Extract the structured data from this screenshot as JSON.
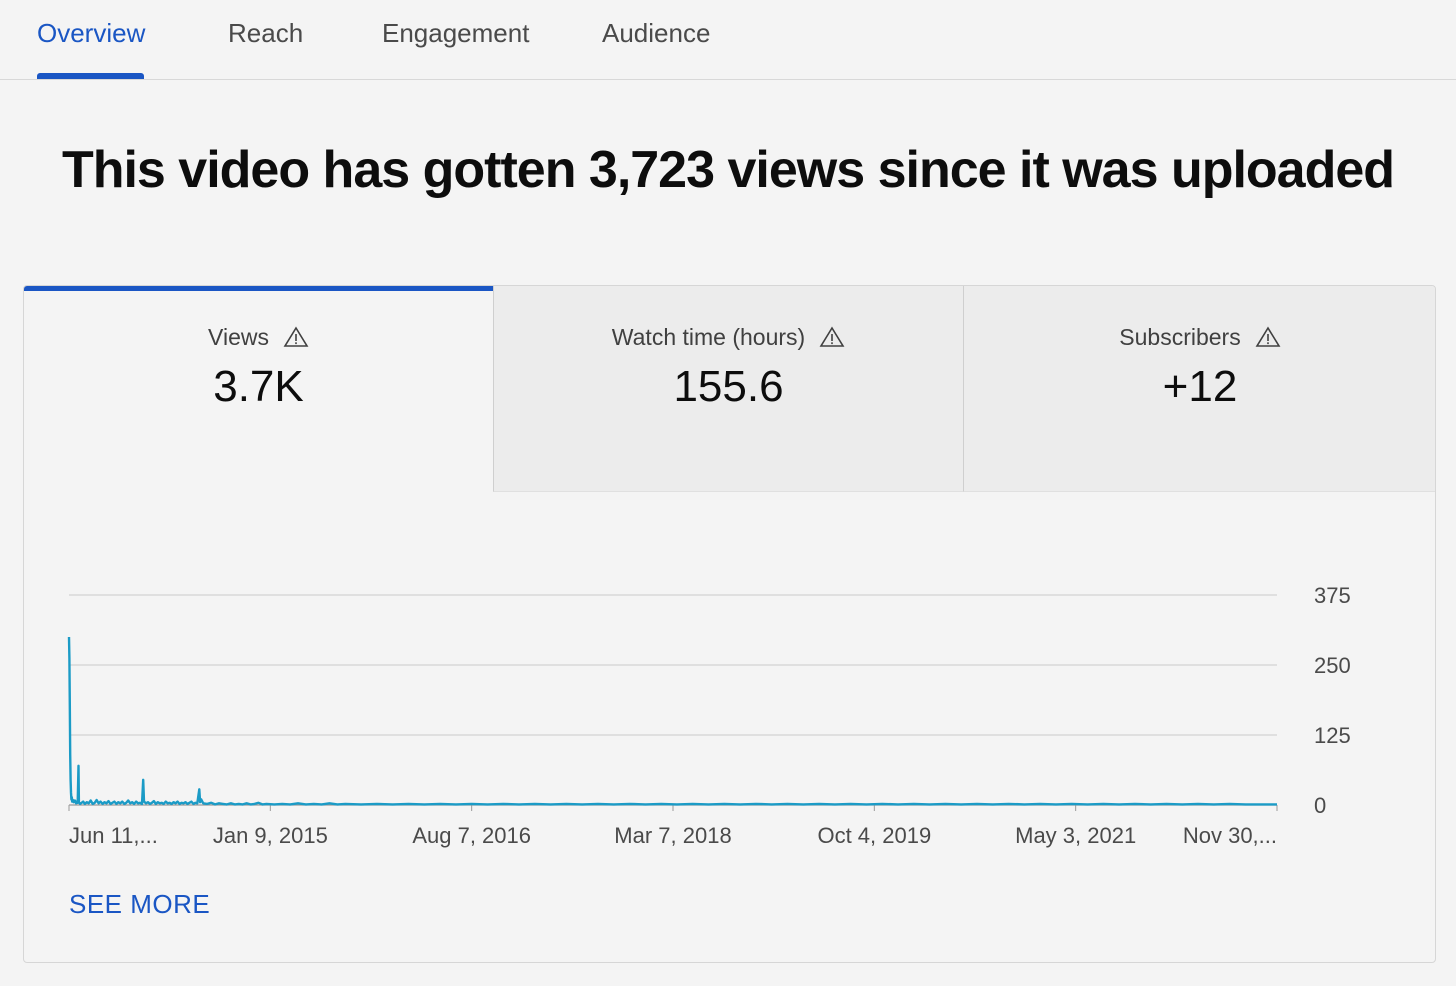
{
  "tabs": [
    {
      "label": "Overview",
      "active": true
    },
    {
      "label": "Reach",
      "active": false
    },
    {
      "label": "Engagement",
      "active": false
    },
    {
      "label": "Audience",
      "active": false
    }
  ],
  "headline": "This video has gotten 3,723 views since it was uploaded",
  "metrics": [
    {
      "label": "Views",
      "value": "3.7K",
      "icon": "warning-icon",
      "selected": true
    },
    {
      "label": "Watch time (hours)",
      "value": "155.6",
      "icon": "warning-icon",
      "selected": false
    },
    {
      "label": "Subscribers",
      "value": "+12",
      "icon": "warning-icon",
      "selected": false
    }
  ],
  "see_more_label": "SEE MORE",
  "colors": {
    "accent": "#1a56c4",
    "series": "#1b9bc6"
  },
  "chart_data": {
    "type": "line",
    "series": [
      {
        "values": [
          [
            0,
            300
          ],
          [
            1,
            262
          ],
          [
            2,
            180
          ],
          [
            3,
            90
          ],
          [
            4,
            45
          ],
          [
            5,
            22
          ],
          [
            6,
            10
          ],
          [
            7,
            14
          ],
          [
            8,
            6
          ],
          [
            10,
            9
          ],
          [
            12,
            5
          ],
          [
            15,
            8
          ],
          [
            18,
            3
          ],
          [
            20,
            6
          ],
          [
            22,
            4
          ],
          [
            24,
            70
          ],
          [
            25,
            5
          ],
          [
            28,
            2
          ],
          [
            32,
            4
          ],
          [
            36,
            6
          ],
          [
            40,
            2
          ],
          [
            45,
            5
          ],
          [
            50,
            3
          ],
          [
            55,
            8
          ],
          [
            60,
            2
          ],
          [
            65,
            4
          ],
          [
            70,
            9
          ],
          [
            75,
            3
          ],
          [
            80,
            6
          ],
          [
            85,
            2
          ],
          [
            90,
            5
          ],
          [
            95,
            3
          ],
          [
            100,
            7
          ],
          [
            105,
            2
          ],
          [
            110,
            4
          ],
          [
            115,
            6
          ],
          [
            120,
            2
          ],
          [
            125,
            5
          ],
          [
            130,
            3
          ],
          [
            135,
            6
          ],
          [
            140,
            2
          ],
          [
            145,
            4
          ],
          [
            150,
            8
          ],
          [
            155,
            3
          ],
          [
            160,
            5
          ],
          [
            165,
            2
          ],
          [
            170,
            6
          ],
          [
            175,
            3
          ],
          [
            180,
            4
          ],
          [
            185,
            2
          ],
          [
            188,
            45
          ],
          [
            190,
            6
          ],
          [
            195,
            3
          ],
          [
            200,
            5
          ],
          [
            205,
            2
          ],
          [
            210,
            4
          ],
          [
            215,
            7
          ],
          [
            220,
            2
          ],
          [
            225,
            5
          ],
          [
            230,
            3
          ],
          [
            235,
            4
          ],
          [
            240,
            2
          ],
          [
            245,
            6
          ],
          [
            250,
            3
          ],
          [
            255,
            4
          ],
          [
            260,
            2
          ],
          [
            265,
            5
          ],
          [
            270,
            3
          ],
          [
            275,
            6
          ],
          [
            280,
            2
          ],
          [
            285,
            4
          ],
          [
            290,
            3
          ],
          [
            295,
            5
          ],
          [
            300,
            2
          ],
          [
            305,
            4
          ],
          [
            310,
            6
          ],
          [
            315,
            2
          ],
          [
            320,
            4
          ],
          [
            325,
            3
          ],
          [
            330,
            28
          ],
          [
            332,
            5
          ],
          [
            335,
            10
          ],
          [
            340,
            3
          ],
          [
            350,
            2
          ],
          [
            360,
            4
          ],
          [
            370,
            1
          ],
          [
            380,
            3
          ],
          [
            390,
            2
          ],
          [
            400,
            1
          ],
          [
            410,
            3
          ],
          [
            420,
            1
          ],
          [
            430,
            2
          ],
          [
            440,
            1
          ],
          [
            450,
            3
          ],
          [
            460,
            1
          ],
          [
            470,
            2
          ],
          [
            480,
            4
          ],
          [
            490,
            1
          ],
          [
            500,
            2
          ],
          [
            520,
            1
          ],
          [
            540,
            2
          ],
          [
            560,
            1
          ],
          [
            580,
            3
          ],
          [
            600,
            1
          ],
          [
            620,
            2
          ],
          [
            640,
            1
          ],
          [
            660,
            3
          ],
          [
            680,
            1
          ],
          [
            700,
            2
          ],
          [
            740,
            1
          ],
          [
            780,
            2
          ],
          [
            820,
            1
          ],
          [
            860,
            2
          ],
          [
            900,
            1
          ],
          [
            940,
            2
          ],
          [
            980,
            1
          ],
          [
            1020,
            2
          ],
          [
            1060,
            1
          ],
          [
            1100,
            2
          ],
          [
            1140,
            1
          ],
          [
            1180,
            2
          ],
          [
            1220,
            1
          ],
          [
            1260,
            2
          ],
          [
            1300,
            1
          ],
          [
            1340,
            2
          ],
          [
            1380,
            1
          ],
          [
            1420,
            2
          ],
          [
            1460,
            1
          ],
          [
            1500,
            2
          ],
          [
            1540,
            1
          ],
          [
            1580,
            2
          ],
          [
            1620,
            1
          ],
          [
            1660,
            2
          ],
          [
            1700,
            1
          ],
          [
            1740,
            2
          ],
          [
            1780,
            1
          ],
          [
            1820,
            2
          ],
          [
            1860,
            1
          ],
          [
            1900,
            2
          ],
          [
            1940,
            1
          ],
          [
            1980,
            2
          ],
          [
            2020,
            1
          ],
          [
            2060,
            2
          ],
          [
            2100,
            1
          ],
          [
            2140,
            2
          ],
          [
            2180,
            1
          ],
          [
            2220,
            2
          ],
          [
            2260,
            1
          ],
          [
            2300,
            2
          ],
          [
            2340,
            1
          ],
          [
            2380,
            2
          ],
          [
            2420,
            1
          ],
          [
            2460,
            2
          ],
          [
            2500,
            1
          ],
          [
            2540,
            2
          ],
          [
            2580,
            1
          ],
          [
            2620,
            2
          ],
          [
            2660,
            1
          ],
          [
            2700,
            2
          ],
          [
            2740,
            1
          ],
          [
            2780,
            2
          ],
          [
            2820,
            1
          ],
          [
            2860,
            2
          ],
          [
            2900,
            1
          ],
          [
            2940,
            2
          ],
          [
            2980,
            1
          ],
          [
            3020,
            1
          ],
          [
            3060,
            1
          ]
        ]
      }
    ],
    "x_tick_labels": [
      "Jun 11,...",
      "Jan 9, 2015",
      "Aug 7, 2016",
      "Mar 7, 2018",
      "Oct 4, 2019",
      "May 3, 2021",
      "Nov 30,..."
    ],
    "y_ticks": [
      0,
      125,
      250,
      375
    ],
    "ylim": [
      0,
      375
    ],
    "grid": true
  }
}
